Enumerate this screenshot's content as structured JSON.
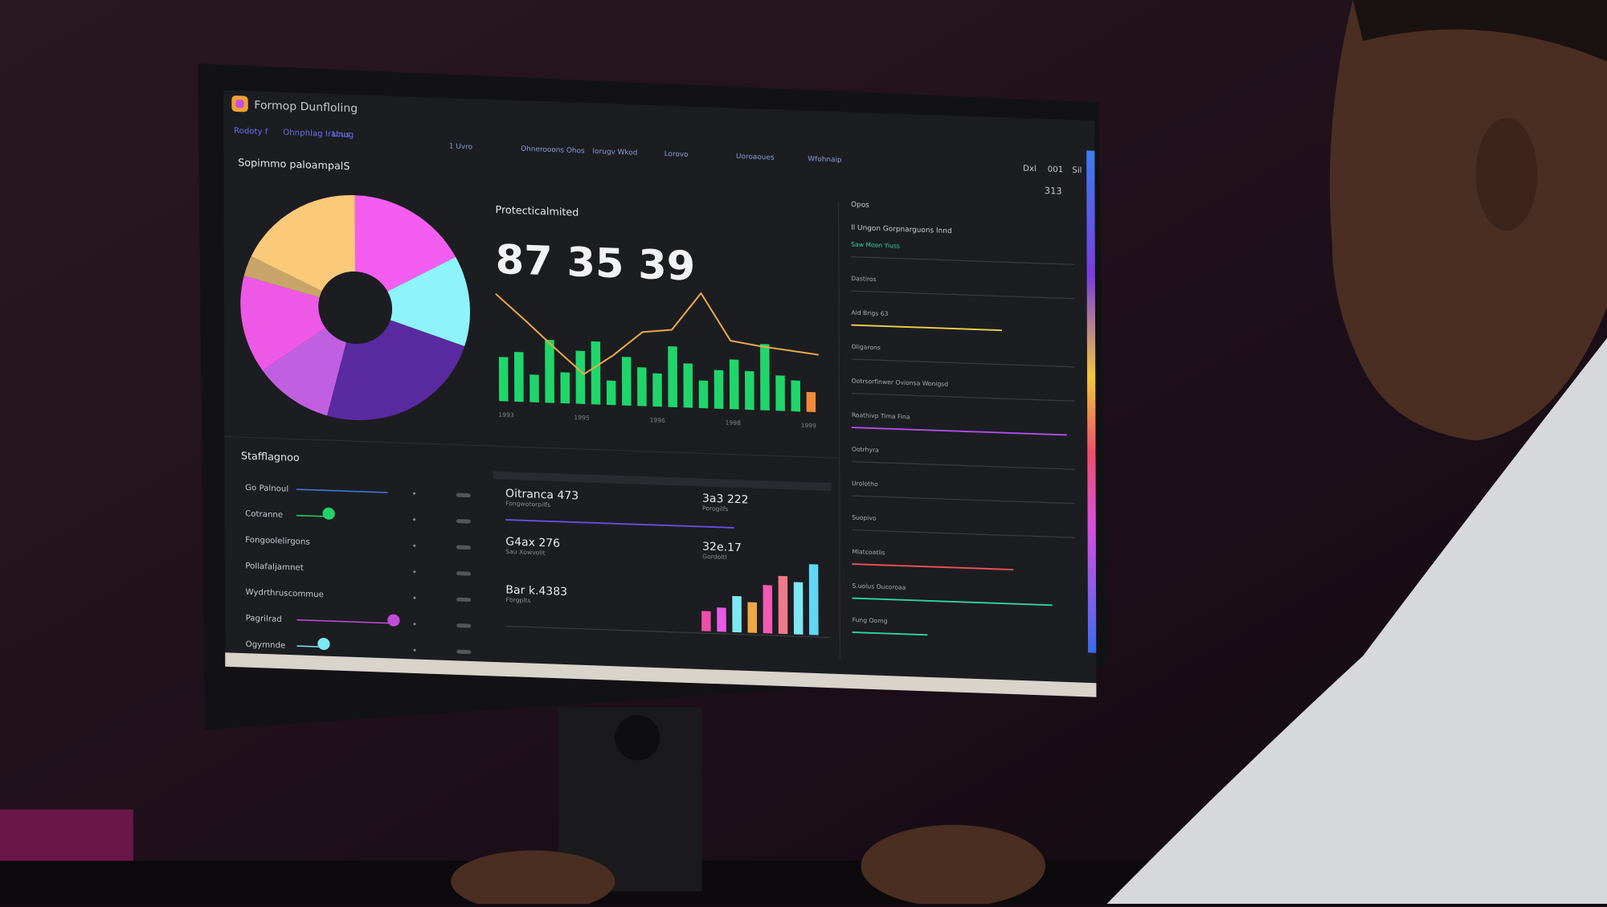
{
  "header": {
    "title": "Formop Dunfloling",
    "breadcrumbs": [
      "Rodoty f",
      "Ohnphlag Iracus",
      "Unug"
    ],
    "tabs": [
      "1 Uvro",
      "Ohnerooons Ohos",
      "Iorugv Wkod",
      "Lorovo",
      "Uoroaoues",
      "Wfohnaip"
    ],
    "right": [
      "Dxl",
      "001",
      "Sil"
    ],
    "count": "313"
  },
  "pie_panel": {
    "title": "Sopimmo paloampalS",
    "slices": [
      {
        "value": 17,
        "color": "#f45ef0"
      },
      {
        "value": 13,
        "color": "#8ef3fb"
      },
      {
        "value": 24,
        "color": "#5a2aa0"
      },
      {
        "value": 11,
        "color": "#c060e0"
      },
      {
        "value": 14,
        "color": "#ee58e6"
      },
      {
        "value": 3,
        "color": "#c9a468"
      },
      {
        "value": 18,
        "color": "#fbc97a"
      }
    ]
  },
  "trend_panel": {
    "title": "Protecticalmited",
    "headline": "87 35 39",
    "ylim": [
      0,
      100
    ],
    "bars": {
      "values": [
        40,
        45,
        25,
        57,
        28,
        48,
        57,
        22,
        44,
        35,
        30,
        55,
        40,
        25,
        35,
        45,
        35,
        60,
        32,
        28,
        18
      ],
      "colors": [
        "#1fd66a",
        "#1fd66a",
        "#1fd66a",
        "#1fd66a",
        "#1fd66a",
        "#1fd66a",
        "#1fd66a",
        "#1fd66a",
        "#1fd66a",
        "#1fd66a",
        "#1fd66a",
        "#1fd66a",
        "#1fd66a",
        "#1fd66a",
        "#1fd66a",
        "#1fd66a",
        "#1fd66a",
        "#1fd66a",
        "#1fd66a",
        "#1fd66a",
        "#f08a3a"
      ]
    },
    "line": {
      "values": [
        97,
        74,
        50,
        27,
        45,
        67,
        70,
        104,
        62,
        58,
        55,
        52
      ],
      "color": "#e8a94a"
    },
    "x_labels": [
      "1993",
      "1995",
      "1996",
      "1998",
      "1999"
    ]
  },
  "list_panel": {
    "title": "Stafflagnoo",
    "items": [
      {
        "label": "Go Palnoul",
        "value": 85,
        "color": "#3f7de8",
        "knob": false
      },
      {
        "label": "Cotranne",
        "value": 30,
        "color": "#22d36a",
        "knob": true
      },
      {
        "label": "Fongoolelirgons"
      },
      {
        "label": "Pollafaljamnet"
      },
      {
        "label": "Wydrthruscommue"
      },
      {
        "label": "Pagrilrad",
        "value": 90,
        "color": "#c04ed8",
        "knob": true
      },
      {
        "label": "Ogymnde",
        "value": 25,
        "color": "#7fe8f5",
        "knob": true
      }
    ]
  },
  "metrics_panel": {
    "tiles": [
      {
        "value": "Oitranca 473",
        "sub": "Fongwotorpilfs"
      },
      {
        "value": "3a3 222",
        "sub": "Porogilfs"
      },
      {
        "value": "G4ax 276",
        "sub": "Sau Xowvolit"
      },
      {
        "value": "32e.17",
        "sub": "Gordoltl"
      },
      {
        "value": "Bar k.4383",
        "sub": "Fbrgplts"
      }
    ],
    "progress": {
      "value": 78,
      "color": "#6a4ee0"
    },
    "bars": {
      "values": [
        25,
        30,
        45,
        38,
        60,
        72,
        65,
        88
      ],
      "colors": [
        "#ee4fa8",
        "#e85ae8",
        "#7fe8f5",
        "#f0a844",
        "#f25ab4",
        "#f07a8a",
        "#7fe8f5",
        "#5fd8f8"
      ]
    }
  },
  "side_panel": {
    "header": "Opos",
    "heading": "Il Ungon Gorpnarguons Innd",
    "rows": [
      {
        "label": "Saw Moon Yiuss"
      },
      {
        "label": "Dastiros"
      },
      {
        "label": "Ald Brigs 63",
        "value": 70,
        "color": "#f2d24a"
      },
      {
        "label": "Oligarons"
      },
      {
        "label": "Ootrsorfinwer Ovionsa Wonigsd"
      },
      {
        "label": "Roathivp Tima Fina",
        "value": 100,
        "color": "#b04ee8"
      },
      {
        "label": "Ootrhyra"
      },
      {
        "label": "Urolotho"
      },
      {
        "label": "Suopivo"
      },
      {
        "label": "Mlatcoatlis",
        "value": 75,
        "color": "#f0525a"
      },
      {
        "label": "S.uolus Oucoroaa",
        "value": 93,
        "color": "#2ed6a0"
      },
      {
        "label": "Fung Oomg",
        "value": 35,
        "color": "#2ed6a0"
      }
    ]
  }
}
